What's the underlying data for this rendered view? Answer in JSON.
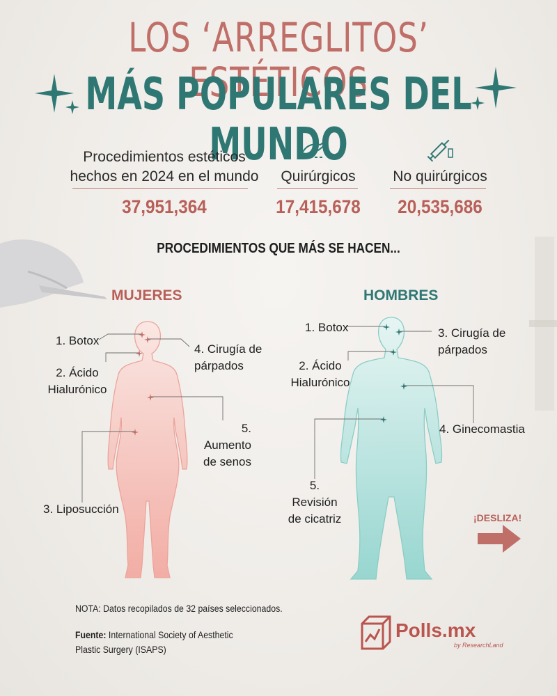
{
  "title": {
    "line1": "LOS ‘ARREGLITOS’ ESTÉTICOS",
    "line2": "MÁS POPULARES DEL MUNDO"
  },
  "stats": [
    {
      "label_line1": "Procedimientos estéticos",
      "label_line2": "hechos en 2024 en el mundo",
      "value": "37,951,364"
    },
    {
      "label": "Quirúrgicos",
      "value": "17,415,678",
      "icon": "surgical-hand-icon"
    },
    {
      "label": "No quirúrgicos",
      "value": "20,535,686",
      "icon": "syringe-icon"
    }
  ],
  "section_heading": "PROCEDIMIENTOS QUE MÁS SE HACEN...",
  "women": {
    "heading": "MUJERES",
    "items": [
      {
        "text_line1": "1. Botox"
      },
      {
        "text_line1": "2. Ácido",
        "text_line2": "Hialurónico"
      },
      {
        "text_line1": "3. Liposucción"
      },
      {
        "text_line1": "4. Cirugía de",
        "text_line2": "párpados"
      },
      {
        "text_line1": "5. Aumento",
        "text_line2": "de senos"
      }
    ]
  },
  "men": {
    "heading": "HOMBRES",
    "items": [
      {
        "text_line1": "1. Botox"
      },
      {
        "text_line1": "2. Ácido",
        "text_line2": "Hialurónico"
      },
      {
        "text_line1": "3. Cirugía de",
        "text_line2": "párpados"
      },
      {
        "text_line1": "4. Ginecomastia"
      },
      {
        "text_line1": "5. Revisión",
        "text_line2": "de cicatriz"
      }
    ]
  },
  "note": "NOTA: Datos recopilados de 32 países seleccionados.",
  "source": {
    "label": "Fuente:",
    "text_line1": "International Society of Aesthetic",
    "text_line2": "Plastic Surgery (ISAPS)"
  },
  "cta": "¡DESLIZA!",
  "brand": {
    "name": "Polls.mx",
    "sub": "by ResearchLand"
  },
  "colors": {
    "accent_rose": "#c06f68",
    "accent_teal": "#2f7773",
    "women_figure": "#f4b3ab",
    "men_figure": "#9ed9d4"
  }
}
